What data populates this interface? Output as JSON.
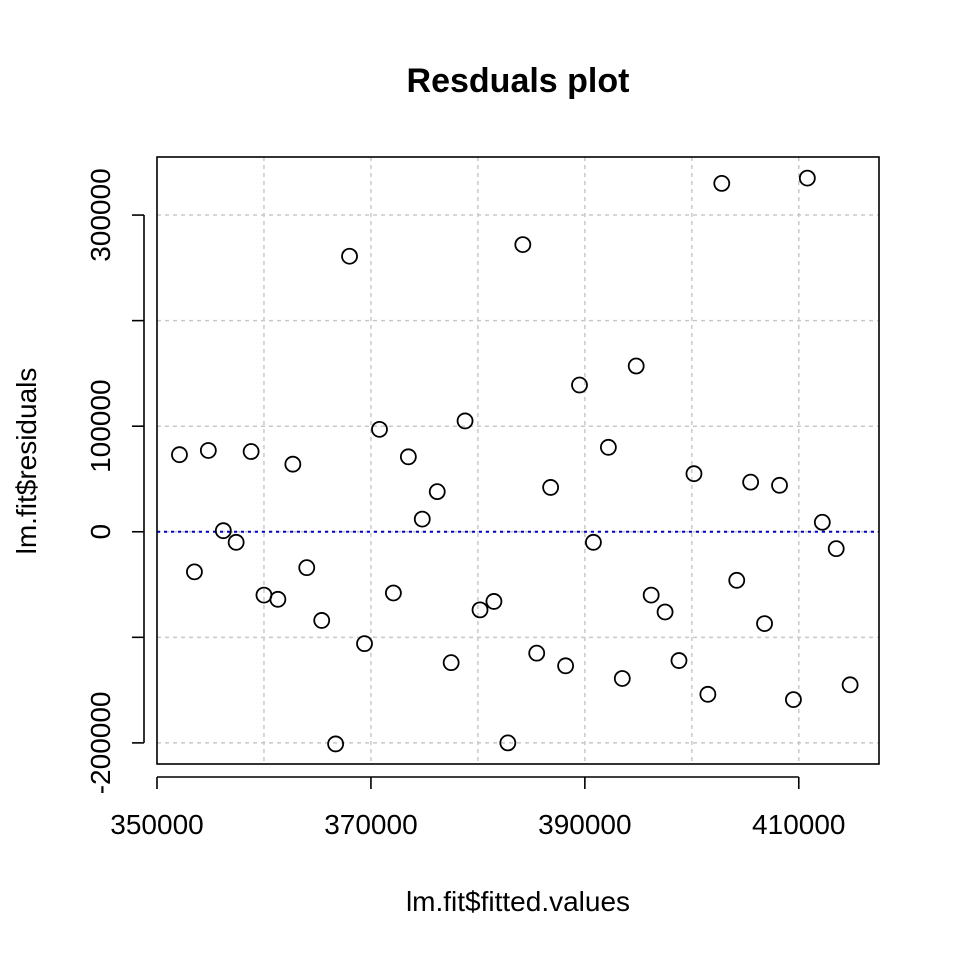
{
  "chart_data": {
    "type": "scatter",
    "title": "Resduals plot",
    "xlabel": "lm.fit$fitted.values",
    "ylabel": "lm.fit$residuals",
    "xlim": [
      350000,
      417500
    ],
    "ylim": [
      -220000,
      355000
    ],
    "x_ticks": [
      350000,
      370000,
      390000,
      410000
    ],
    "x_tick_labels": [
      "350000",
      "370000",
      "390000",
      "410000"
    ],
    "y_ticks": [
      -200000,
      0,
      100000,
      300000
    ],
    "y_tick_labels": [
      "-200000",
      "0",
      "100000",
      "300000"
    ],
    "y_tick_marks": [
      -200000,
      -100000,
      0,
      100000,
      200000,
      300000
    ],
    "x_grid": [
      360000,
      370000,
      380000,
      390000,
      400000,
      410000
    ],
    "y_grid": [
      -200000,
      -100000,
      0,
      100000,
      200000,
      300000
    ],
    "grid": true,
    "reference_line": {
      "y": 0,
      "color": "#0000cc"
    },
    "point_color": "#000000",
    "series": [
      {
        "x": [
          352100,
          353500,
          354800,
          356200,
          357400,
          358800,
          360000,
          361300,
          362700,
          364000,
          365400,
          366700,
          368000,
          369400,
          370800,
          372100,
          373500,
          374800,
          376200,
          377500,
          378800,
          380200,
          381500,
          382800,
          384200,
          385500,
          386800,
          388200,
          389500,
          390800,
          392200,
          393500,
          394800,
          396200,
          397500,
          398800,
          400200,
          401500,
          402800,
          404200,
          405500,
          406800,
          408200,
          409500,
          410800,
          412200,
          413500,
          414800
        ],
        "y": [
          73000,
          -38000,
          77000,
          1000,
          -10000,
          76000,
          -60000,
          -64000,
          64000,
          -34000,
          -84000,
          -201000,
          261000,
          -106000,
          97000,
          -58000,
          71000,
          12000,
          38000,
          -124000,
          105000,
          -74000,
          -66000,
          -200000,
          272000,
          -115000,
          42000,
          -127000,
          139000,
          -10000,
          80000,
          -139000,
          157000,
          -60000,
          -76000,
          -122000,
          55000,
          -154000,
          330000,
          -46000,
          47000,
          -87000,
          44000,
          -159000,
          335000,
          9000,
          -16000,
          -145000
        ]
      }
    ]
  }
}
